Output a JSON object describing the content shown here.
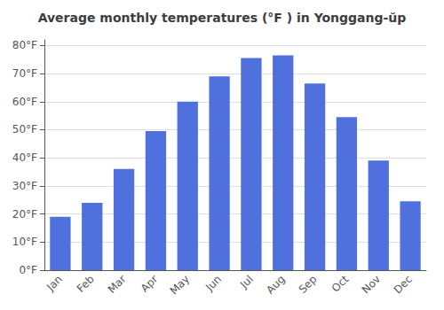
{
  "chart_data": {
    "type": "bar",
    "title": "Average monthly temperatures (°F ) in Yonggang-ŭp",
    "categories": [
      "Jan",
      "Feb",
      "Mar",
      "Apr",
      "May",
      "Jun",
      "Jul",
      "Aug",
      "Sep",
      "Oct",
      "Nov",
      "Dec"
    ],
    "values": [
      19,
      24,
      36,
      49.5,
      60,
      69,
      75.5,
      76.5,
      66.5,
      54.5,
      39,
      24.5
    ],
    "ylim": [
      0,
      82
    ],
    "yticks": [
      {
        "value": 0,
        "label": "0°F"
      },
      {
        "value": 10,
        "label": "10°F"
      },
      {
        "value": 20,
        "label": "20°F"
      },
      {
        "value": 30,
        "label": "30°F"
      },
      {
        "value": 40,
        "label": "40°F"
      },
      {
        "value": 50,
        "label": "50°F"
      },
      {
        "value": 60,
        "label": "60°F"
      },
      {
        "value": 70,
        "label": "70°F"
      },
      {
        "value": 80,
        "label": "80°F"
      }
    ],
    "grid": true
  }
}
